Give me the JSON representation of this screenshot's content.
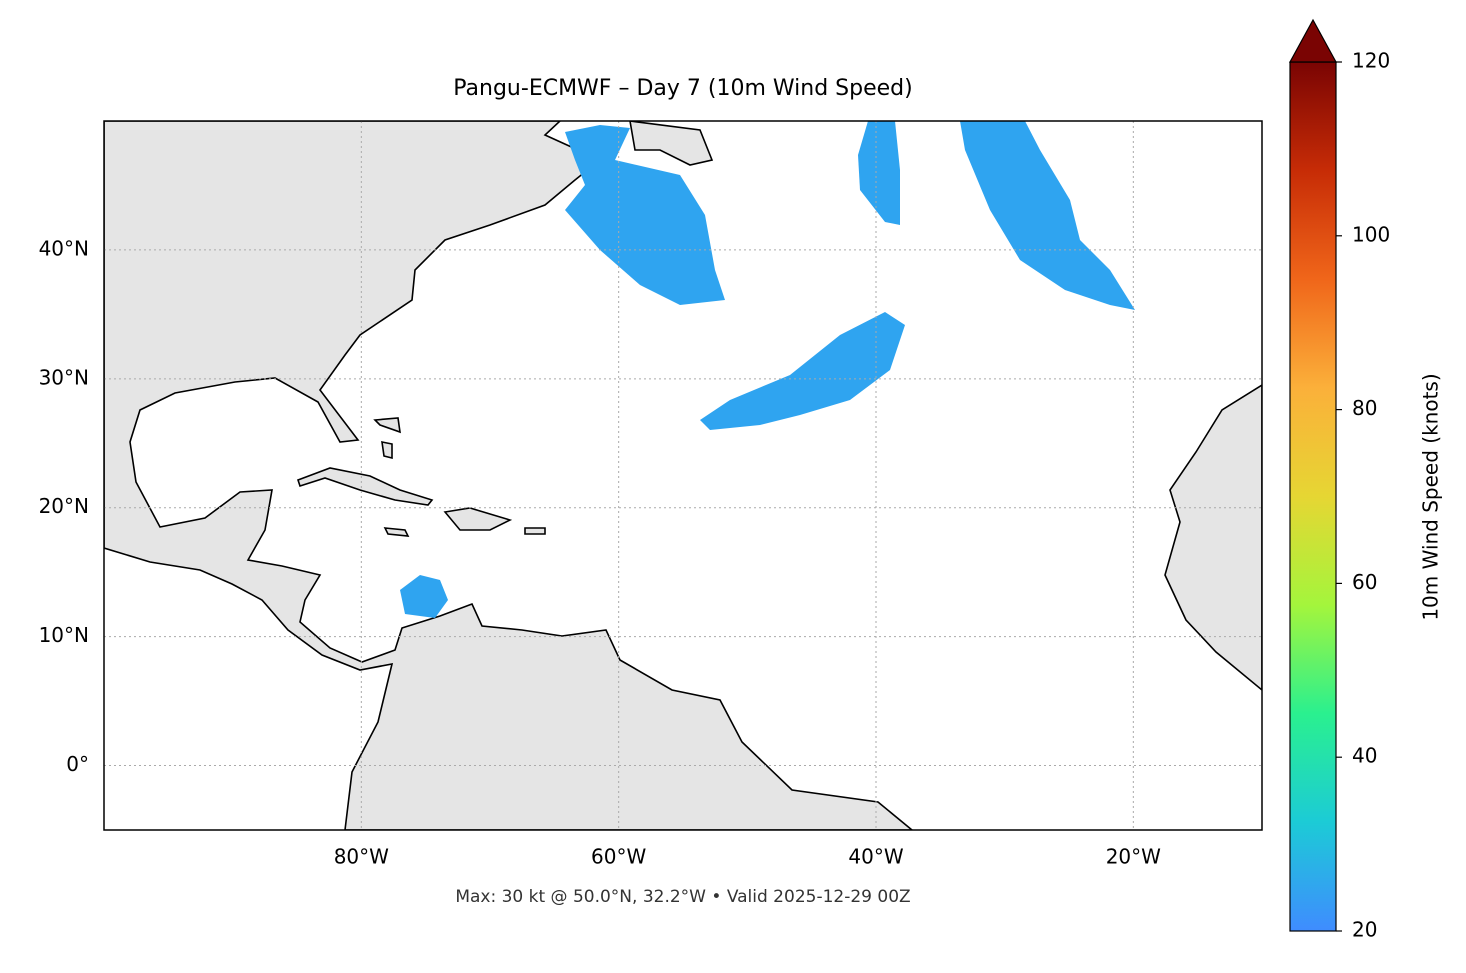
{
  "chart_data": {
    "type": "map",
    "title": "Pangu-ECMWF – Day 7 (10m Wind Speed)",
    "caption": "Max: 30 kt @ 50.0°N, 32.2°W • Valid 2025-12-29 00Z",
    "xlim": [
      -100,
      -10
    ],
    "ylim": [
      -5,
      50
    ],
    "xticks": [
      {
        "value": -80,
        "label": "80°W"
      },
      {
        "value": -60,
        "label": "60°W"
      },
      {
        "value": -40,
        "label": "40°W"
      },
      {
        "value": -20,
        "label": "20°W"
      }
    ],
    "yticks": [
      {
        "value": 0,
        "label": "0°"
      },
      {
        "value": 10,
        "label": "10°N"
      },
      {
        "value": 20,
        "label": "20°N"
      },
      {
        "value": 30,
        "label": "30°N"
      },
      {
        "value": 40,
        "label": "40°N"
      }
    ],
    "grid": true,
    "colorbar": {
      "label": "10m Wind Speed (knots)",
      "lim": [
        20,
        120
      ],
      "ticks": [
        20,
        40,
        60,
        80,
        100,
        120
      ],
      "colors": [
        "#3f8cff",
        "#1ccbd6",
        "#2af08f",
        "#a4f53c",
        "#e6d633",
        "#fbb03a",
        "#f0661a",
        "#c72c06",
        "#7a0403"
      ]
    }
  }
}
